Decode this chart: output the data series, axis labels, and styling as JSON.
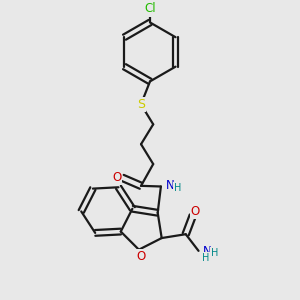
{
  "bg_color": "#e8e8e8",
  "bond_color": "#1a1a1a",
  "bond_lw": 1.6,
  "dbl_off": 0.011,
  "atom_colors": {
    "Cl": "#22bb00",
    "S": "#cccc00",
    "O": "#cc0000",
    "N": "#0000cc",
    "H": "#008888"
  },
  "fs": 8.5,
  "fs_small": 7.0,
  "xlim": [
    0.15,
    0.85
  ],
  "ylim": [
    0.05,
    0.97
  ]
}
